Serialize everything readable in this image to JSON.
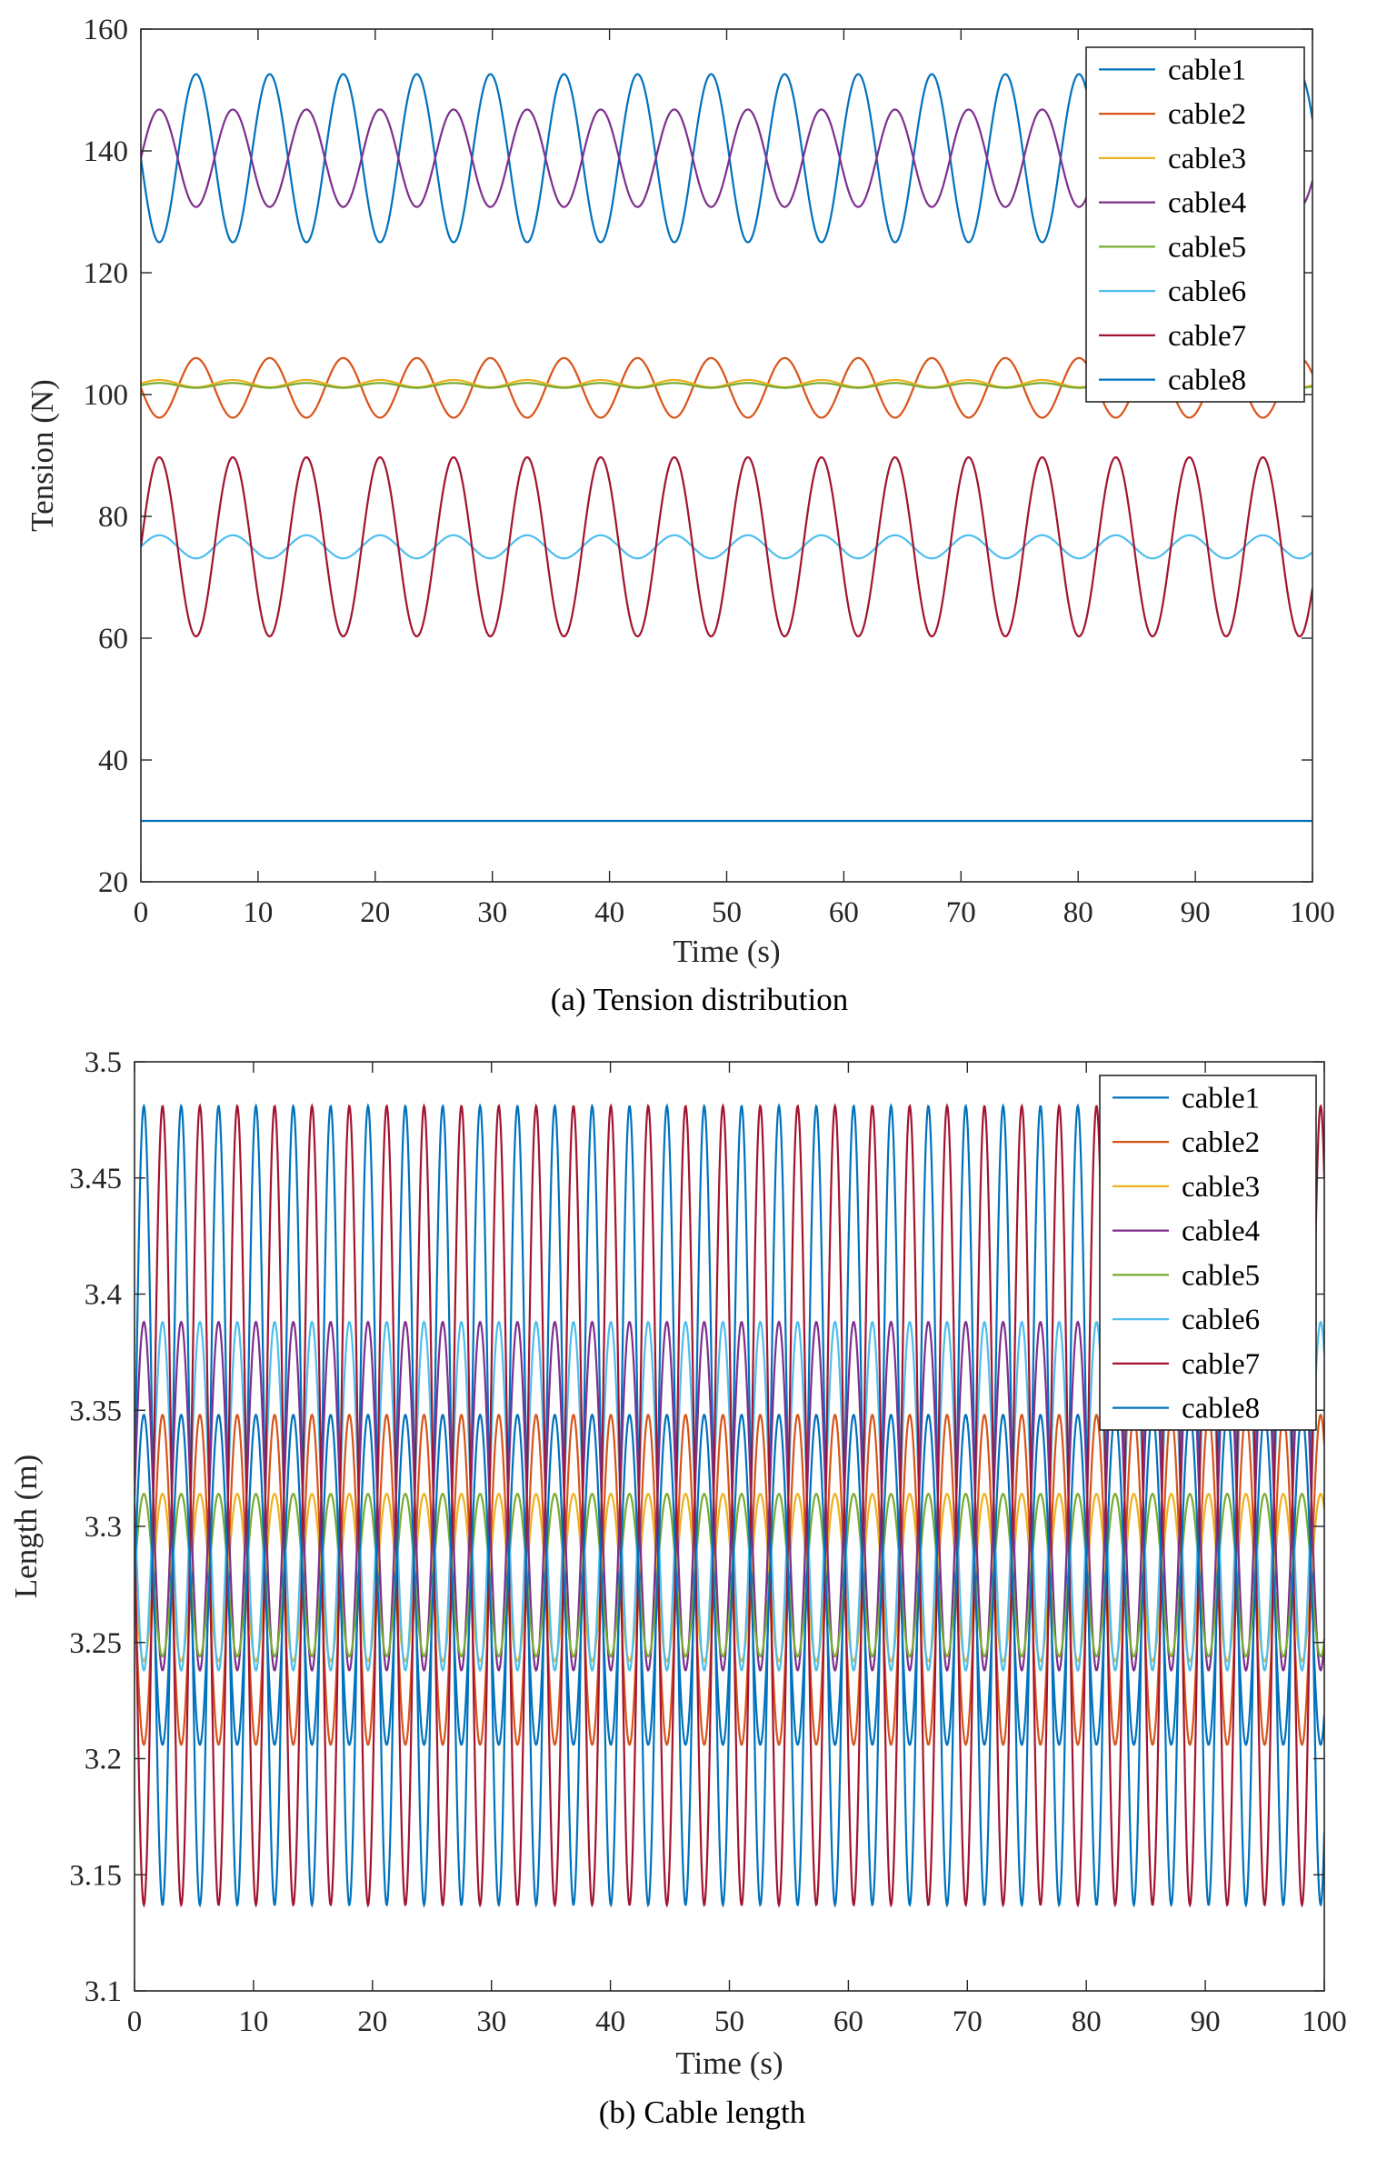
{
  "chart_data": [
    {
      "type": "line",
      "caption": "(a) Tension distribution",
      "xlabel": "Time (s)",
      "ylabel": "Tension (N)",
      "xlim": [
        0,
        100
      ],
      "ylim": [
        20,
        160
      ],
      "xticks": [
        0,
        10,
        20,
        30,
        40,
        50,
        60,
        70,
        80,
        90,
        100
      ],
      "yticks": [
        20,
        40,
        60,
        80,
        100,
        120,
        140,
        160
      ],
      "ytick_labels": [
        "20",
        "40",
        "60",
        "80",
        "100",
        "120",
        "140",
        "160"
      ],
      "legend_position": "top-right",
      "series": [
        {
          "name": "cable1",
          "color": "#0072BD",
          "offset": 138.8,
          "amplitude": 13.8,
          "period": 6.28,
          "phase": 3.14
        },
        {
          "name": "cable2",
          "color": "#D95319",
          "offset": 101.1,
          "amplitude": 4.9,
          "period": 6.28,
          "phase": 3.14
        },
        {
          "name": "cable3",
          "color": "#EDB120",
          "offset": 101.8,
          "amplitude": 0.6,
          "period": 6.28,
          "phase": 0
        },
        {
          "name": "cable4",
          "color": "#7E2F8E",
          "offset": 138.8,
          "amplitude": 8.0,
          "period": 6.28,
          "phase": 0
        },
        {
          "name": "cable5",
          "color": "#77AC30",
          "offset": 101.5,
          "amplitude": 0.4,
          "period": 6.28,
          "phase": 0
        },
        {
          "name": "cable6",
          "color": "#4DBEEE",
          "offset": 75.0,
          "amplitude": 1.9,
          "period": 6.28,
          "phase": 0
        },
        {
          "name": "cable7",
          "color": "#A2142F",
          "offset": 75.0,
          "amplitude": 14.7,
          "period": 6.28,
          "phase": 0
        },
        {
          "name": "cable8",
          "color": "#0072BD",
          "offset": 30.0,
          "amplitude": 0,
          "period": 6.28,
          "phase": 0
        }
      ]
    },
    {
      "type": "line",
      "caption": "(b) Cable length",
      "xlabel": "Time (s)",
      "ylabel": "Length (m)",
      "xlim": [
        0,
        100
      ],
      "ylim": [
        3.1,
        3.5
      ],
      "xticks": [
        0,
        10,
        20,
        30,
        40,
        50,
        60,
        70,
        80,
        90,
        100
      ],
      "yticks": [
        3.1,
        3.15,
        3.2,
        3.25,
        3.3,
        3.35,
        3.4,
        3.45,
        3.5
      ],
      "ytick_labels": [
        "3.1",
        "3.15",
        "3.2",
        "3.25",
        "3.3",
        "3.35",
        "3.4",
        "3.45",
        "3.5"
      ],
      "legend_position": "top-right",
      "series": [
        {
          "name": "cable1",
          "color": "#0072BD",
          "offset": 3.309,
          "amplitude": 0.172,
          "period": 3.14,
          "phase": 0
        },
        {
          "name": "cable2",
          "color": "#D95319",
          "offset": 3.277,
          "amplitude": 0.071,
          "period": 3.14,
          "phase": 3.14
        },
        {
          "name": "cable3",
          "color": "#EDB120",
          "offset": 3.278,
          "amplitude": 0.036,
          "period": 3.14,
          "phase": 3.14
        },
        {
          "name": "cable4",
          "color": "#7E2F8E",
          "offset": 3.313,
          "amplitude": 0.075,
          "period": 3.14,
          "phase": 0
        },
        {
          "name": "cable5",
          "color": "#77AC30",
          "offset": 3.279,
          "amplitude": 0.035,
          "period": 3.14,
          "phase": 0
        },
        {
          "name": "cable6",
          "color": "#4DBEEE",
          "offset": 3.313,
          "amplitude": 0.075,
          "period": 3.14,
          "phase": 3.14
        },
        {
          "name": "cable7",
          "color": "#A2142F",
          "offset": 3.309,
          "amplitude": 0.172,
          "period": 3.14,
          "phase": 3.14
        },
        {
          "name": "cable8",
          "color": "#0072BD",
          "offset": 3.277,
          "amplitude": 0.071,
          "period": 3.14,
          "phase": 0
        }
      ]
    }
  ]
}
